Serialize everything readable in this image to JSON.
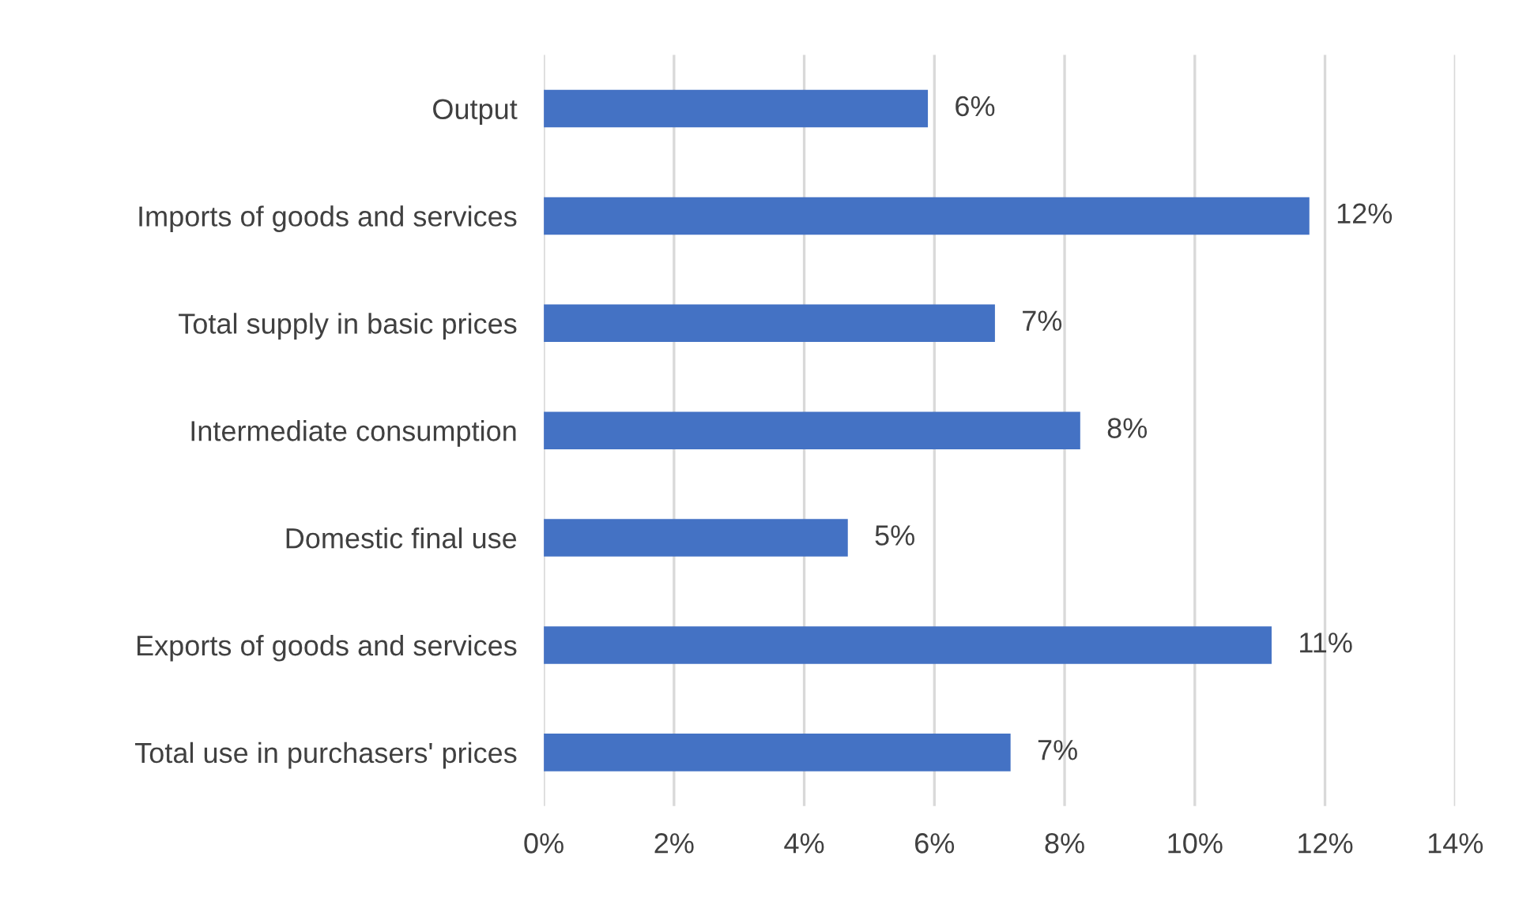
{
  "chart_data": {
    "type": "bar",
    "orientation": "horizontal",
    "categories": [
      "Output",
      "Imports of goods and services",
      "Total supply in basic prices",
      "Intermediate consumption",
      "Domestic final use",
      "Exports of goods and services",
      "Total use in purchasers' prices"
    ],
    "values": [
      5.9,
      11.76,
      6.93,
      8.24,
      4.67,
      11.18,
      7.17
    ],
    "value_labels": [
      "6%",
      "12%",
      "7%",
      "8%",
      "5%",
      "11%",
      "7%"
    ],
    "color": "#4472c4",
    "xlim": [
      0,
      14
    ],
    "xticks": [
      {
        "value": 0,
        "label": "0%"
      },
      {
        "value": 2,
        "label": "2%"
      },
      {
        "value": 4,
        "label": "4%"
      },
      {
        "value": 6,
        "label": "6%"
      },
      {
        "value": 8,
        "label": "8%"
      },
      {
        "value": 10,
        "label": "10%"
      },
      {
        "value": 12,
        "label": "12%"
      },
      {
        "value": 14,
        "label": "14%"
      }
    ],
    "grid": "x",
    "legend": false
  }
}
